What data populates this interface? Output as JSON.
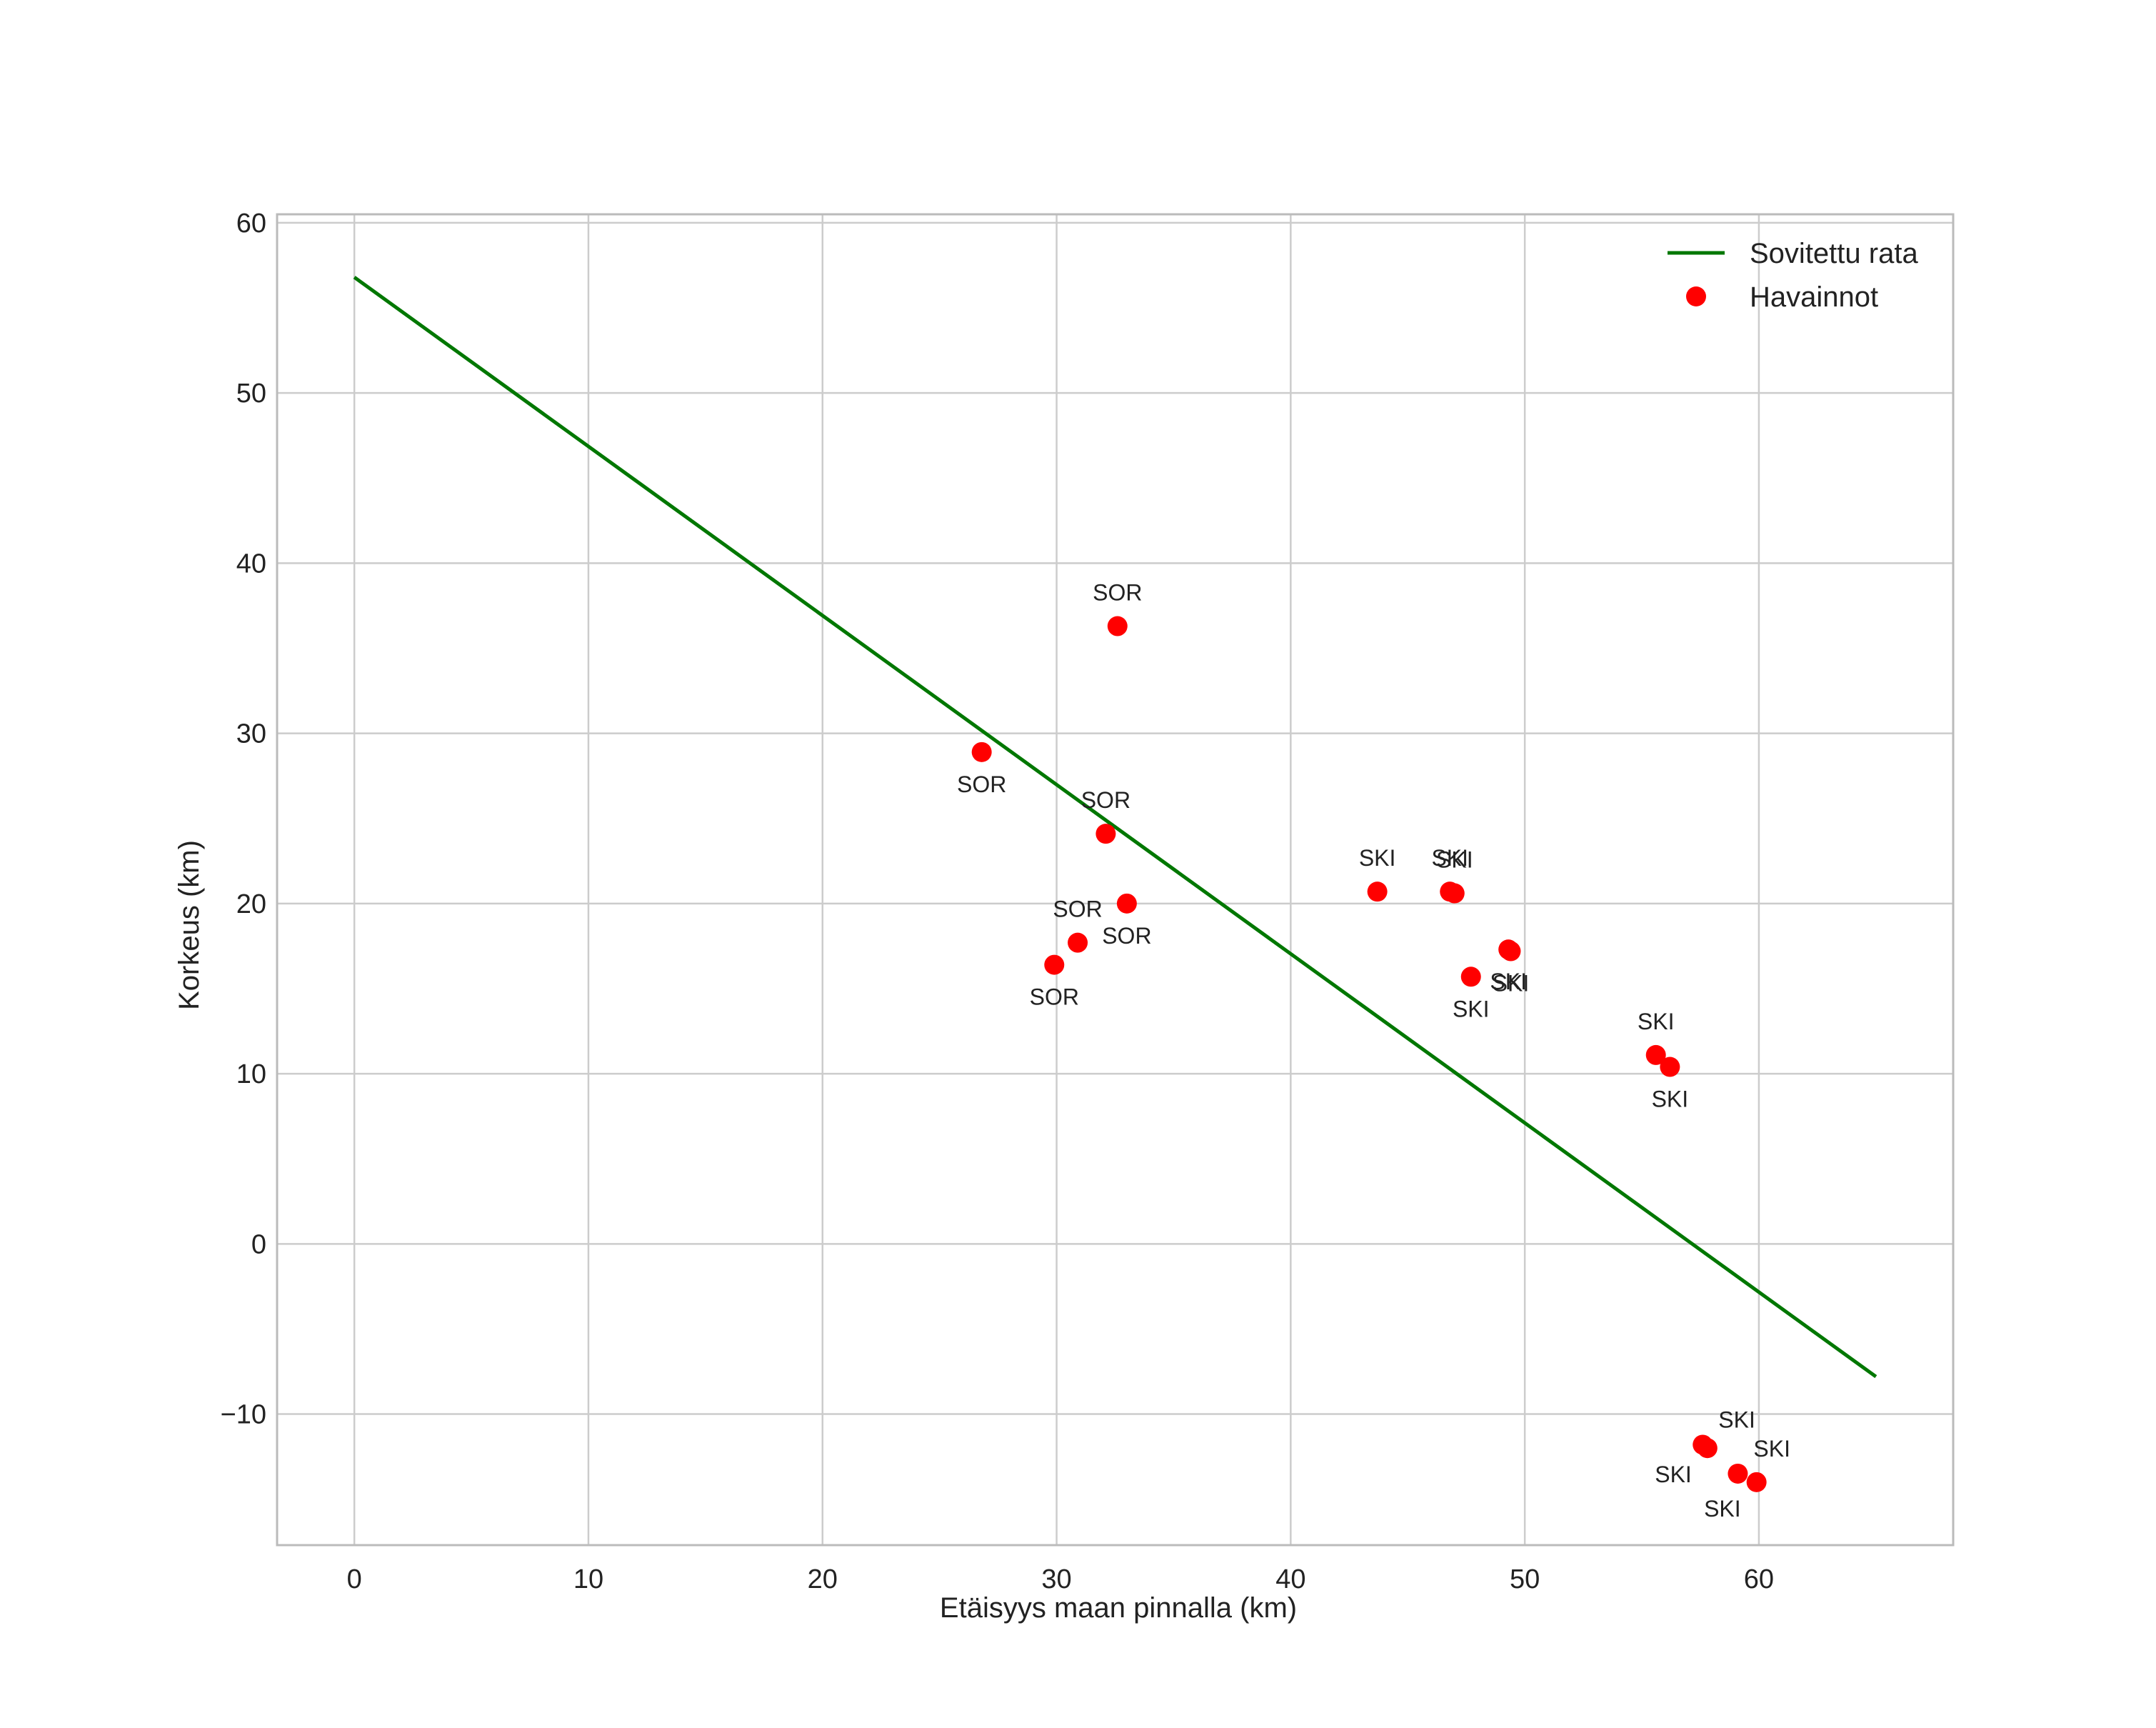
{
  "colors": {
    "line": "#007700",
    "points": "#ff0000",
    "grid": "#cccccc",
    "frame": "#bbbbbb",
    "text": "#222222"
  },
  "chart_data": {
    "type": "scatter",
    "title": "",
    "xlabel": "Etäisyys maan pinnalla (km)",
    "ylabel": "Korkeus (km)",
    "xlim": [
      -3.3,
      68.3
    ],
    "ylim": [
      -17.7,
      60.5
    ],
    "xticks": [
      0,
      10,
      20,
      30,
      40,
      50,
      60
    ],
    "yticks": [
      -10,
      0,
      10,
      20,
      30,
      40,
      50,
      60
    ],
    "grid": true,
    "legend_position": "top-right",
    "series": [
      {
        "name": "Sovitettu rata",
        "kind": "line",
        "x": [
          0,
          65
        ],
        "y": [
          56.8,
          -7.8
        ]
      },
      {
        "name": "Havainnot",
        "kind": "scatter",
        "points": [
          {
            "x": 26.8,
            "y": 28.9,
            "label": "SOR",
            "pos": "below"
          },
          {
            "x": 32.6,
            "y": 36.3,
            "label": "SOR",
            "pos": "above"
          },
          {
            "x": 32.1,
            "y": 24.1,
            "label": "SOR",
            "pos": "above"
          },
          {
            "x": 33.0,
            "y": 20.0,
            "label": "SOR",
            "pos": "below"
          },
          {
            "x": 30.9,
            "y": 17.7,
            "label": "SOR",
            "pos": "above"
          },
          {
            "x": 29.9,
            "y": 16.4,
            "label": "SOR",
            "pos": "below"
          },
          {
            "x": 43.7,
            "y": 20.7,
            "label": "SKI",
            "pos": "above"
          },
          {
            "x": 46.8,
            "y": 20.7,
            "label": "SKI",
            "pos": "above"
          },
          {
            "x": 47.0,
            "y": 20.6,
            "label": "SKI",
            "pos": "above"
          },
          {
            "x": 47.7,
            "y": 15.7,
            "label": "SKI",
            "pos": "below"
          },
          {
            "x": 49.3,
            "y": 17.3,
            "label": "SKI",
            "pos": "below"
          },
          {
            "x": 49.4,
            "y": 17.2,
            "label": "SKI",
            "pos": "below"
          },
          {
            "x": 55.6,
            "y": 11.1,
            "label": "SKI",
            "pos": "above"
          },
          {
            "x": 56.2,
            "y": 10.4,
            "label": "SKI",
            "pos": "below"
          },
          {
            "x": 57.6,
            "y": -11.8,
            "label": "SKI",
            "pos": "above-right"
          },
          {
            "x": 57.8,
            "y": -12.0,
            "label": "SKI",
            "pos": "below-left"
          },
          {
            "x": 59.1,
            "y": -13.5,
            "label": "SKI",
            "pos": "above-right"
          },
          {
            "x": 59.9,
            "y": -14.0,
            "label": "SKI",
            "pos": "below-left"
          }
        ]
      }
    ]
  }
}
